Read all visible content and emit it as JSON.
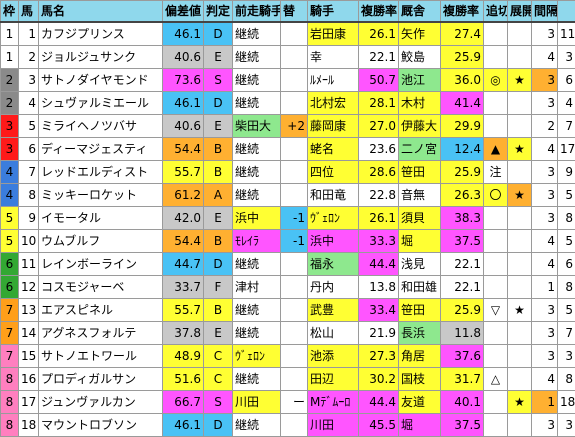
{
  "headers": [
    "枠",
    "馬",
    "馬名",
    "偏差値",
    "判定",
    "前走騎手",
    "替",
    "騎手",
    "複勝率",
    "厩舎",
    "複勝率",
    "追切",
    "展開",
    "間隔"
  ],
  "colors": {
    "waku": [
      "#ffffff",
      "#ffffff",
      "#8a8a8a",
      "#8a8a8a",
      "#ff1a1a",
      "#ff1a1a",
      "#3b7ddd",
      "#3b7ddd",
      "#ffff33",
      "#ffff33",
      "#33a833",
      "#33a833",
      "#ff9f1a",
      "#ff9f1a",
      "#ff7fbf",
      "#ff7fbf",
      "#ff7fbf",
      "#ff7fbf"
    ],
    "blue": "#49c2f5",
    "silver": "#c8c8c8",
    "yellow": "#ffff33",
    "magenta": "#ff55ff",
    "green": "#8ee88e",
    "orange": "#ffb031"
  },
  "rows": [
    {
      "waku": "1",
      "num": "1",
      "name": "カフジプリンス",
      "dev": "46.1",
      "grade": "D",
      "prev": "継続",
      "swap": "",
      "jockey": "岩田康",
      "jrate": "26.1",
      "stable": "矢作",
      "srate": "27.4",
      "oikiri": "",
      "tenkai": "",
      "interval": "3",
      "extra": "11"
    },
    {
      "waku": "1",
      "num": "2",
      "name": "ジョルジュサンク",
      "dev": "40.6",
      "grade": "E",
      "prev": "継続",
      "swap": "",
      "jockey": "幸",
      "jrate": "22.1",
      "stable": "鮫島",
      "srate": "25.9",
      "oikiri": "",
      "tenkai": "",
      "interval": "4",
      "extra": "3"
    },
    {
      "waku": "2",
      "num": "3",
      "name": "サトノダイヤモンド",
      "dev": "73.6",
      "grade": "S",
      "prev": "継続",
      "swap": "",
      "jockey": "ﾙﾒｰﾙ",
      "jrate": "50.7",
      "stable": "池江",
      "srate": "36.0",
      "oikiri": "◎",
      "tenkai": "★",
      "interval": "3",
      "extra": "6"
    },
    {
      "waku": "2",
      "num": "4",
      "name": "シュヴァルミエール",
      "dev": "46.1",
      "grade": "D",
      "prev": "継続",
      "swap": "",
      "jockey": "北村宏",
      "jrate": "28.1",
      "stable": "木村",
      "srate": "41.4",
      "oikiri": "",
      "tenkai": "",
      "interval": "3",
      "extra": "4"
    },
    {
      "waku": "3",
      "num": "5",
      "name": "ミライヘノツバサ",
      "dev": "40.6",
      "grade": "E",
      "prev": "柴田大",
      "swap": "+2",
      "jockey": "藤岡康",
      "jrate": "27.0",
      "stable": "伊藤大",
      "srate": "29.9",
      "oikiri": "",
      "tenkai": "",
      "interval": "2",
      "extra": "7"
    },
    {
      "waku": "3",
      "num": "6",
      "name": "ディーマジェスティ",
      "dev": "54.4",
      "grade": "B",
      "prev": "継続",
      "swap": "",
      "jockey": "蛯名",
      "jrate": "23.6",
      "stable": "二ノ宮",
      "srate": "12.4",
      "oikiri": "▲",
      "tenkai": "★",
      "interval": "4",
      "extra": "17"
    },
    {
      "waku": "4",
      "num": "7",
      "name": "レッドエルディスト",
      "dev": "55.7",
      "grade": "B",
      "prev": "継続",
      "swap": "",
      "jockey": "四位",
      "jrate": "28.6",
      "stable": "笹田",
      "srate": "25.9",
      "oikiri": "注",
      "tenkai": "",
      "interval": "3",
      "extra": "9"
    },
    {
      "waku": "4",
      "num": "8",
      "name": "ミッキーロケット",
      "dev": "61.2",
      "grade": "A",
      "prev": "継続",
      "swap": "",
      "jockey": "和田竜",
      "jrate": "22.8",
      "stable": "音無",
      "srate": "26.3",
      "oikiri": "〇",
      "tenkai": "★",
      "interval": "3",
      "extra": "5"
    },
    {
      "waku": "5",
      "num": "9",
      "name": "イモータル",
      "dev": "42.0",
      "grade": "E",
      "prev": "浜中",
      "swap": "-1",
      "jockey": "ｳﾞｪﾛﾝ",
      "jrate": "26.1",
      "stable": "須貝",
      "srate": "38.3",
      "oikiri": "",
      "tenkai": "",
      "interval": "3",
      "extra": "8"
    },
    {
      "waku": "5",
      "num": "10",
      "name": "ウムブルフ",
      "dev": "54.4",
      "grade": "B",
      "prev": "ﾓﾚｲﾗ",
      "swap": "-1",
      "jockey": "浜中",
      "jrate": "33.3",
      "stable": "堀",
      "srate": "37.5",
      "oikiri": "",
      "tenkai": "",
      "interval": "4",
      "extra": "5"
    },
    {
      "waku": "6",
      "num": "11",
      "name": "レインボーライン",
      "dev": "44.7",
      "grade": "D",
      "prev": "継続",
      "swap": "",
      "jockey": "福永",
      "jrate": "44.4",
      "stable": "浅見",
      "srate": "22.1",
      "oikiri": "",
      "tenkai": "",
      "interval": "4",
      "extra": "6"
    },
    {
      "waku": "6",
      "num": "12",
      "name": "コスモジャーベ",
      "dev": "33.7",
      "grade": "F",
      "prev": "津村",
      "swap": "",
      "jockey": "丹内",
      "jrate": "13.8",
      "stable": "和田雄",
      "srate": "22.1",
      "oikiri": "",
      "tenkai": "",
      "interval": "1",
      "extra": "8"
    },
    {
      "waku": "7",
      "num": "13",
      "name": "エアスピネル",
      "dev": "55.7",
      "grade": "B",
      "prev": "継続",
      "swap": "",
      "jockey": "武豊",
      "jrate": "33.4",
      "stable": "笹田",
      "srate": "25.9",
      "oikiri": "▽",
      "tenkai": "★",
      "interval": "3",
      "extra": "5"
    },
    {
      "waku": "7",
      "num": "14",
      "name": "アグネスフォルテ",
      "dev": "37.8",
      "grade": "E",
      "prev": "継続",
      "swap": "",
      "jockey": "松山",
      "jrate": "21.9",
      "stable": "長浜",
      "srate": "11.8",
      "oikiri": "",
      "tenkai": "",
      "interval": "3",
      "extra": "7"
    },
    {
      "waku": "7",
      "num": "15",
      "name": "サトノエトワール",
      "dev": "48.9",
      "grade": "C",
      "prev": "ｳﾞｪﾛﾝ",
      "swap": "",
      "jockey": "池添",
      "jrate": "27.3",
      "stable": "角居",
      "srate": "37.6",
      "oikiri": "",
      "tenkai": "",
      "interval": "3",
      "extra": "3"
    },
    {
      "waku": "8",
      "num": "16",
      "name": "プロディガルサン",
      "dev": "51.6",
      "grade": "C",
      "prev": "継続",
      "swap": "",
      "jockey": "田辺",
      "jrate": "30.2",
      "stable": "国枝",
      "srate": "31.7",
      "oikiri": "△",
      "tenkai": "",
      "interval": "4",
      "extra": "8"
    },
    {
      "waku": "8",
      "num": "17",
      "name": "ジュンヴァルカン",
      "dev": "66.7",
      "grade": "S",
      "prev": "川田",
      "swap": "ー",
      "jockey": "Mﾃﾞﾑｰﾛ",
      "jrate": "44.4",
      "stable": "友道",
      "srate": "40.1",
      "oikiri": "",
      "tenkai": "★",
      "interval": "1",
      "extra": "18"
    },
    {
      "waku": "8",
      "num": "18",
      "name": "マウントロブソン",
      "dev": "46.1",
      "grade": "D",
      "prev": "継続",
      "swap": "",
      "jockey": "川田",
      "jrate": "45.5",
      "stable": "堀",
      "srate": "37.5",
      "oikiri": "",
      "tenkai": "",
      "interval": "3",
      "extra": "3"
    }
  ]
}
